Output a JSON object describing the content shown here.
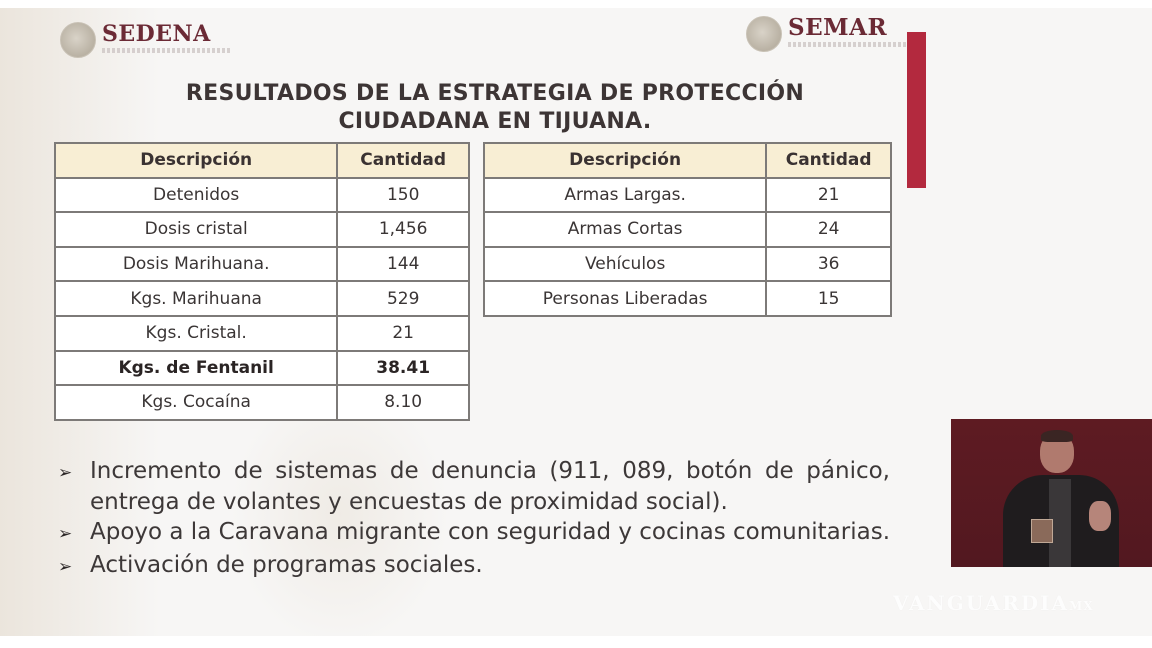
{
  "header": {
    "left_logo": {
      "name": "SEDENA",
      "subtitle": "SECRETARÍA DE LA DEFENSA NACIONAL",
      "icon": "national-seal-icon"
    },
    "right_logo": {
      "name": "SEMAR",
      "subtitle": "SECRETARÍA DE MARINA",
      "icon": "national-seal-icon"
    },
    "accent_bar_color": "#b3293e"
  },
  "title": {
    "line1": "RESULTADOS DE LA ESTRATEGIA DE PROTECCIÓN",
    "line2": "CIUDADANA EN TIJUANA."
  },
  "table_left": {
    "headers": [
      "Descripción",
      "Cantidad"
    ],
    "rows": [
      {
        "desc": "Detenidos",
        "qty": "150",
        "bold": false
      },
      {
        "desc": "Dosis cristal",
        "qty": "1,456",
        "bold": false
      },
      {
        "desc": "Dosis Marihuana.",
        "qty": "144",
        "bold": false
      },
      {
        "desc": "Kgs. Marihuana",
        "qty": "529",
        "bold": false
      },
      {
        "desc": "Kgs. Cristal.",
        "qty": "21",
        "bold": false
      },
      {
        "desc": "Kgs. de Fentanil",
        "qty": "38.41",
        "bold": true
      },
      {
        "desc": "Kgs. Cocaína",
        "qty": "8.10",
        "bold": false
      }
    ]
  },
  "table_right": {
    "headers": [
      "Descripción",
      "Cantidad"
    ],
    "rows": [
      {
        "desc": "Armas Largas.",
        "qty": "21"
      },
      {
        "desc": "Armas Cortas",
        "qty": "24"
      },
      {
        "desc": "Vehículos",
        "qty": "36"
      },
      {
        "desc": "Personas Liberadas",
        "qty": "15"
      }
    ]
  },
  "bullets": {
    "marker": "➢",
    "items": [
      "Incremento de sistemas de denuncia (911, 089, botón de pánico, entrega de volantes y encuestas de proximidad social).",
      "Apoyo a la Caravana migrante con seguridad y cocinas comunitarias.",
      "Activación de programas sociales."
    ]
  },
  "sign_language_video": {
    "label": "sign-language-interpreter"
  },
  "watermark": {
    "text": "VANGUARDIA",
    "suffix": "MX"
  },
  "colors": {
    "header_fill": "#f8eed4",
    "table_border": "#7d7a78",
    "logo_text": "#6b2a35",
    "video_bg": "#5e1b22"
  }
}
